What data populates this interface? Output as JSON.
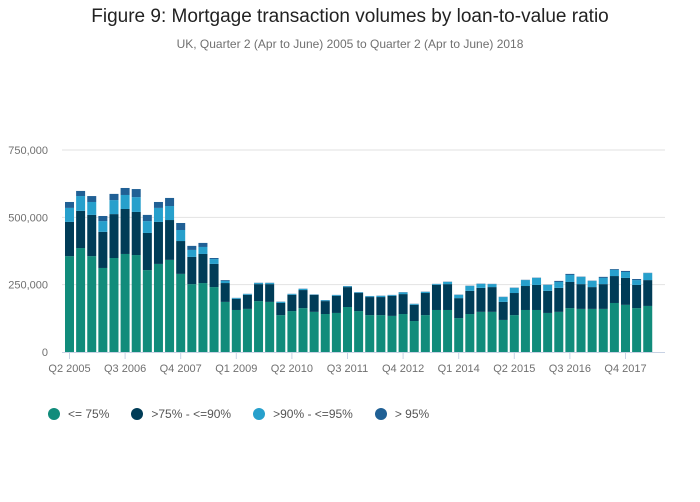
{
  "chart_data": {
    "type": "bar",
    "stacked": true,
    "title": "Figure 9: Mortgage transaction volumes by loan-to-value ratio",
    "subtitle": "UK, Quarter 2 (Apr to June) 2005 to Quarter 2 (Apr to June) 2018",
    "xlabel": "",
    "ylabel": "",
    "ylim": [
      0,
      750000
    ],
    "yticks": [
      0,
      250000,
      500000,
      750000
    ],
    "ytick_labels": [
      "0",
      "250,000",
      "500,000",
      "750,000"
    ],
    "grid": true,
    "legend": "bottom-left",
    "categories": [
      "Q2 2005",
      "Q3 2005",
      "Q4 2005",
      "Q1 2006",
      "Q2 2006",
      "Q3 2006",
      "Q4 2006",
      "Q1 2007",
      "Q2 2007",
      "Q3 2007",
      "Q4 2007",
      "Q1 2008",
      "Q2 2008",
      "Q3 2008",
      "Q4 2008",
      "Q1 2009",
      "Q2 2009",
      "Q3 2009",
      "Q4 2009",
      "Q1 2010",
      "Q2 2010",
      "Q3 2010",
      "Q4 2010",
      "Q1 2011",
      "Q2 2011",
      "Q3 2011",
      "Q4 2011",
      "Q1 2012",
      "Q2 2012",
      "Q3 2012",
      "Q4 2012",
      "Q1 2013",
      "Q2 2013",
      "Q3 2013",
      "Q4 2013",
      "Q1 2014",
      "Q2 2014",
      "Q3 2014",
      "Q4 2014",
      "Q1 2015",
      "Q2 2015",
      "Q3 2015",
      "Q4 2015",
      "Q1 2016",
      "Q2 2016",
      "Q3 2016",
      "Q4 2016",
      "Q1 2017",
      "Q2 2017",
      "Q3 2017",
      "Q4 2017",
      "Q1 2018",
      "Q2 2018"
    ],
    "tick_labels": [
      "Q2 2005",
      "Q3 2006",
      "Q4 2007",
      "Q1 2009",
      "Q2 2010",
      "Q3 2011",
      "Q4 2012",
      "Q1 2014",
      "Q2 2015",
      "Q3 2016",
      "Q4 2017"
    ],
    "series": [
      {
        "name": "<= 75%",
        "color": "#118c7b",
        "values": [
          356000,
          386000,
          356000,
          312000,
          349000,
          364000,
          360000,
          304000,
          327000,
          342000,
          290000,
          252000,
          256000,
          241000,
          186000,
          156000,
          160000,
          189000,
          186000,
          137000,
          152000,
          163000,
          149000,
          141000,
          145000,
          167000,
          152000,
          137000,
          137000,
          134000,
          141000,
          115000,
          137000,
          156000,
          156000,
          126000,
          141000,
          149000,
          149000,
          119000,
          137000,
          156000,
          156000,
          145000,
          149000,
          163000,
          160000,
          160000,
          160000,
          182000,
          175000,
          163000,
          171000
        ]
      },
      {
        "name": ">75% - <=90%",
        "color": "#003c57",
        "values": [
          127000,
          138000,
          153000,
          134000,
          163000,
          167000,
          160000,
          138000,
          156000,
          148000,
          122000,
          101000,
          108000,
          86000,
          70000,
          41000,
          52000,
          63000,
          66000,
          45000,
          60000,
          67000,
          63000,
          48000,
          63000,
          74000,
          67000,
          67000,
          67000,
          74000,
          74000,
          60000,
          82000,
          93000,
          96000,
          74000,
          86000,
          89000,
          92000,
          67000,
          82000,
          89000,
          93000,
          82000,
          89000,
          97000,
          92000,
          81000,
          92000,
          100000,
          100000,
          86000,
          96000
        ]
      },
      {
        "name": ">90% - <=95%",
        "color": "#27a0cc",
        "values": [
          52000,
          55000,
          48000,
          40000,
          52000,
          52000,
          55000,
          44000,
          52000,
          52000,
          41000,
          26000,
          26000,
          18000,
          8000,
          3000,
          3000,
          4000,
          4000,
          4000,
          3000,
          4000,
          1000,
          3000,
          3000,
          3000,
          2000,
          3000,
          4000,
          3000,
          6000,
          3000,
          4000,
          3000,
          8000,
          12000,
          18000,
          15000,
          11000,
          18000,
          19000,
          22000,
          26000,
          22000,
          22000,
          26000,
          27000,
          23000,
          23000,
          23000,
          22000,
          18000,
          26000
        ]
      },
      {
        "name": "> 95%",
        "color": "#206095",
        "values": [
          22000,
          19000,
          22000,
          19000,
          23000,
          26000,
          30000,
          23000,
          22000,
          30000,
          26000,
          15000,
          15000,
          4000,
          3000,
          1000,
          1000,
          1000,
          1000,
          1000,
          1000,
          1000,
          1000,
          1000,
          1000,
          1000,
          1000,
          1000,
          1000,
          1000,
          1000,
          1000,
          1000,
          1000,
          1000,
          1000,
          1000,
          1000,
          1000,
          1000,
          1000,
          1000,
          1000,
          1000,
          4000,
          4000,
          1000,
          1000,
          4000,
          3000,
          4000,
          4000,
          1000
        ]
      }
    ]
  }
}
